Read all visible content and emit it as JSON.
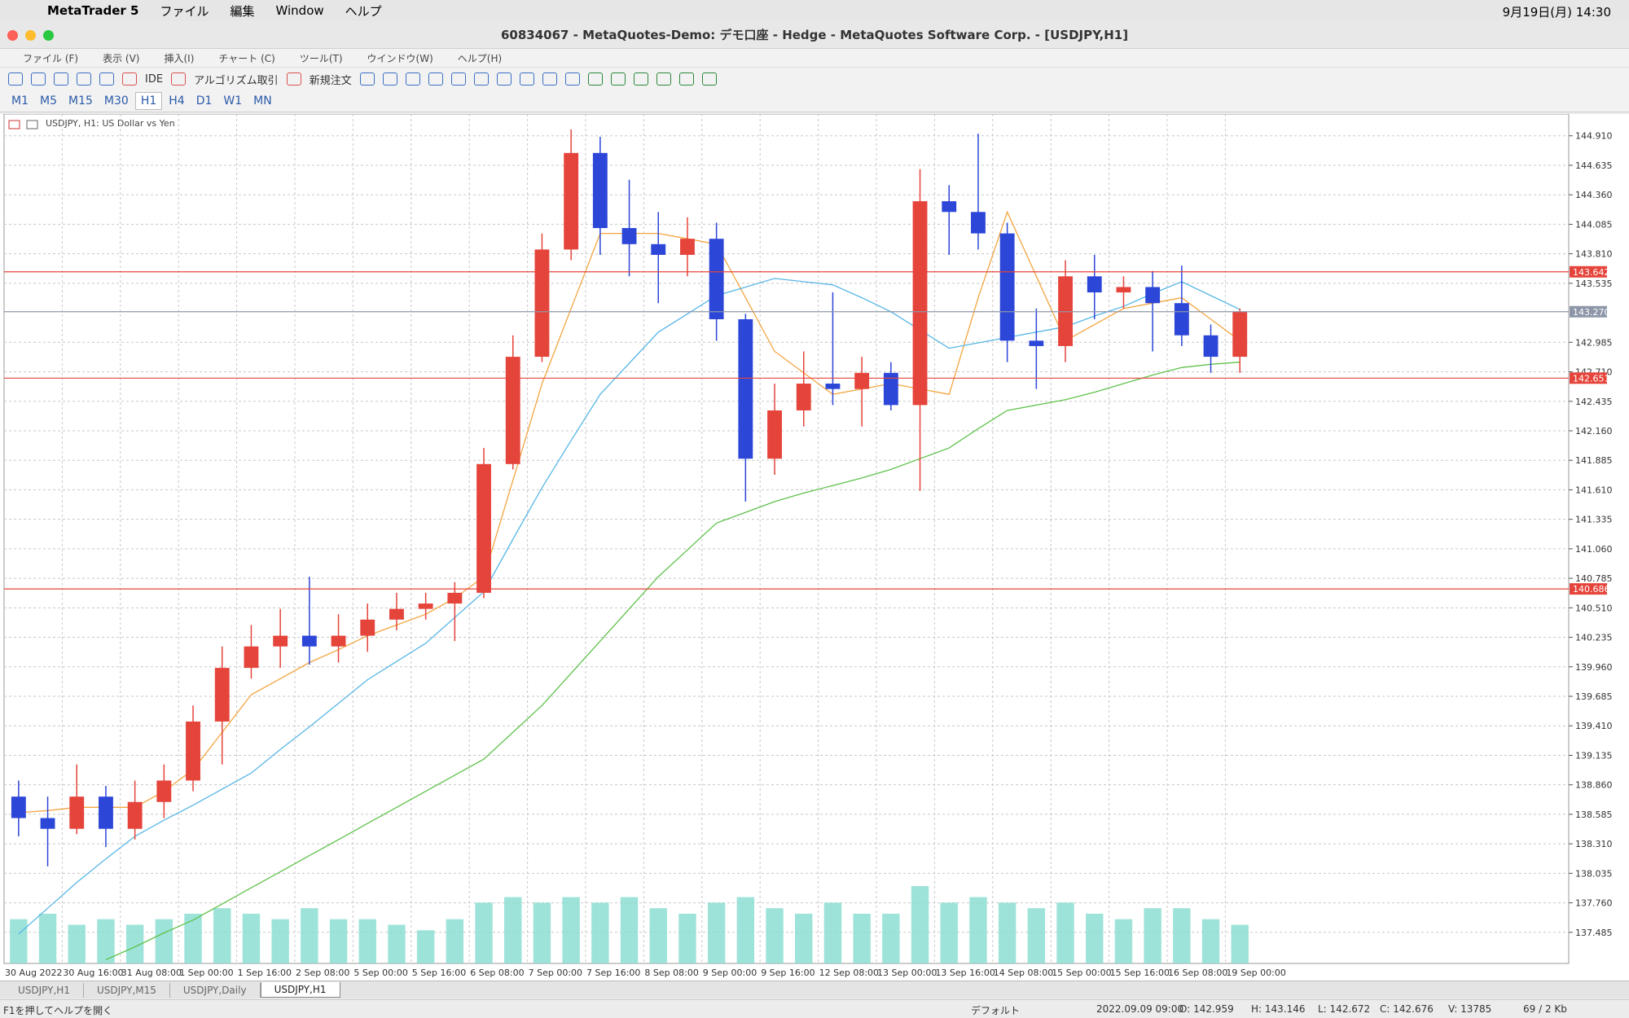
{
  "menubar": {
    "app": "MetaTrader 5",
    "items": [
      "ファイル",
      "編集",
      "Window",
      "ヘルプ"
    ],
    "clock": "9月19日(月)  14:30"
  },
  "window": {
    "title": "60834067 - MetaQuotes-Demo: デモ口座 - Hedge - MetaQuotes Software Corp. - [USDJPY,H1]"
  },
  "menu": [
    "ファイル (F)",
    "表示 (V)",
    "挿入(I)",
    "チャート (C)",
    "ツール(T)",
    "ウインドウ(W)",
    "ヘルプ(H)"
  ],
  "toolbar": {
    "buttons": [
      "IDE",
      "アルゴリズム取引",
      "新規注文"
    ]
  },
  "timeframes": {
    "items": [
      "M1",
      "M5",
      "M15",
      "M30",
      "H1",
      "H4",
      "D1",
      "W1",
      "MN"
    ],
    "active": "H1"
  },
  "chart_data": {
    "type": "candlestick",
    "label": "USDJPY, H1:  US Dollar vs Yen",
    "categories": [
      "30 Aug 2022",
      null,
      "30 Aug 16:00",
      null,
      "31 Aug 08:00",
      null,
      "1 Sep 00:00",
      null,
      "1 Sep 16:00",
      null,
      "2 Sep 08:00",
      null,
      "5 Sep 00:00",
      null,
      "5 Sep 16:00",
      null,
      "6 Sep 08:00",
      null,
      "7 Sep 00:00",
      null,
      "7 Sep 16:00",
      null,
      "8 Sep 08:00",
      null,
      "9 Sep 00:00",
      null,
      "9 Sep 16:00",
      null,
      "12 Sep 08:00",
      null,
      "13 Sep 00:00",
      null,
      "13 Sep 16:00",
      null,
      "14 Sep 08:00",
      null,
      "15 Sep 00:00",
      null,
      "15 Sep 16:00",
      null,
      "16 Sep 08:00",
      null,
      "19 Sep 00:00"
    ],
    "open": [
      138.75,
      138.55,
      138.45,
      138.75,
      138.45,
      138.7,
      138.9,
      139.45,
      139.95,
      140.15,
      140.25,
      140.15,
      140.25,
      140.4,
      140.5,
      140.55,
      140.65,
      141.85,
      142.85,
      143.85,
      144.75,
      144.05,
      143.9,
      143.8,
      143.95,
      143.2,
      141.9,
      142.35,
      142.6,
      142.55,
      142.7,
      142.4,
      144.3,
      144.2,
      144.0,
      143.0,
      142.95,
      143.6,
      143.45,
      143.5,
      143.35,
      143.05,
      142.85
    ],
    "high": [
      138.9,
      138.75,
      139.05,
      138.85,
      138.9,
      139.05,
      139.6,
      140.15,
      140.35,
      140.5,
      140.8,
      140.45,
      140.55,
      140.65,
      140.65,
      140.75,
      142.0,
      143.05,
      144.0,
      144.97,
      144.9,
      144.5,
      144.2,
      144.15,
      144.1,
      143.25,
      142.6,
      142.9,
      143.45,
      142.85,
      142.8,
      144.6,
      144.45,
      144.93,
      144.1,
      143.3,
      143.75,
      143.8,
      143.6,
      143.65,
      143.7,
      143.15,
      143.3
    ],
    "low": [
      138.38,
      138.1,
      138.4,
      138.28,
      138.35,
      138.55,
      138.8,
      139.05,
      139.85,
      139.95,
      139.98,
      140.0,
      140.1,
      140.3,
      140.4,
      140.2,
      140.6,
      141.8,
      142.8,
      143.75,
      143.8,
      143.6,
      143.35,
      143.6,
      143.0,
      141.5,
      141.75,
      142.2,
      142.4,
      142.2,
      142.35,
      141.6,
      143.8,
      143.85,
      142.8,
      142.55,
      142.8,
      143.2,
      143.3,
      142.9,
      142.95,
      142.7,
      142.7
    ],
    "close": [
      138.55,
      138.45,
      138.75,
      138.45,
      138.7,
      138.9,
      139.45,
      139.95,
      140.15,
      140.25,
      140.15,
      140.25,
      140.4,
      140.5,
      140.55,
      140.65,
      141.85,
      142.85,
      143.85,
      144.75,
      144.05,
      143.9,
      143.8,
      143.95,
      143.2,
      141.9,
      142.35,
      142.6,
      142.55,
      142.7,
      142.4,
      144.3,
      144.2,
      144.0,
      143.0,
      142.95,
      143.6,
      143.45,
      143.5,
      143.35,
      143.05,
      142.85,
      143.27
    ],
    "up_color": "#e5443b",
    "down_color": "#2c46d8",
    "overlays": [
      {
        "color": "#f3a541",
        "values": [
          138.6,
          138.62,
          138.65,
          138.65,
          138.65,
          138.8,
          139.0,
          139.35,
          139.7,
          139.85,
          140.0,
          140.12,
          140.25,
          140.35,
          140.45,
          140.6,
          140.8,
          141.7,
          142.6,
          143.3,
          144.0,
          144.0,
          144.0,
          143.95,
          143.9,
          143.4,
          142.9,
          142.7,
          142.5,
          142.55,
          142.6,
          142.55,
          142.5,
          143.4,
          144.2,
          143.6,
          143.0,
          143.15,
          143.3,
          143.35,
          143.4,
          143.2,
          143.0
        ]
      },
      {
        "color": "#57b6e6",
        "values": [
          137.47,
          137.71,
          137.95,
          138.17,
          138.38,
          138.53,
          138.67,
          138.82,
          138.97,
          139.19,
          139.4,
          139.62,
          139.84,
          140.01,
          140.18,
          140.42,
          140.66,
          141.15,
          141.63,
          142.07,
          142.5,
          142.79,
          143.08,
          143.25,
          143.42,
          143.5,
          143.58,
          143.55,
          143.52,
          143.4,
          143.27,
          143.1,
          142.93,
          142.98,
          143.03,
          143.08,
          143.13,
          143.23,
          143.32,
          143.44,
          143.55,
          143.42,
          143.29
        ]
      },
      {
        "color": "#5fc24b",
        "values": [
          null,
          null,
          null,
          137.23,
          137.35,
          137.48,
          137.6,
          137.75,
          137.9,
          138.05,
          138.2,
          138.35,
          138.5,
          138.65,
          138.8,
          138.95,
          139.1,
          139.35,
          139.6,
          139.9,
          140.2,
          140.5,
          140.8,
          141.05,
          141.3,
          141.4,
          141.5,
          141.58,
          141.65,
          141.72,
          141.8,
          141.9,
          142.0,
          142.18,
          142.35,
          142.4,
          142.45,
          142.52,
          142.6,
          142.68,
          142.75,
          142.78,
          142.8
        ]
      }
    ],
    "volume": {
      "color": "#86dccf",
      "values": [
        40,
        45,
        35,
        40,
        35,
        40,
        45,
        50,
        45,
        40,
        50,
        40,
        40,
        35,
        30,
        40,
        55,
        60,
        55,
        60,
        55,
        60,
        50,
        45,
        55,
        60,
        50,
        45,
        55,
        45,
        45,
        70,
        55,
        60,
        55,
        50,
        55,
        45,
        40,
        50,
        50,
        40,
        35
      ]
    },
    "ylim": [
      137.195,
      145.113
    ],
    "yticks": [
      {
        "value": 144.91,
        "label": "144.910"
      },
      144.635,
      {
        "value": 144.36,
        "label": "144.360"
      },
      144.085,
      {
        "value": 143.81,
        "label": "143.810"
      },
      143.535,
      142.985,
      {
        "value": 142.71,
        "label": "142.710"
      },
      142.435,
      {
        "value": 142.16,
        "label": "142.160"
      },
      141.885,
      {
        "value": 141.61,
        "label": "141.610"
      },
      141.335,
      {
        "value": 141.06,
        "label": "141.060"
      },
      140.785,
      {
        "value": 140.51,
        "label": "140.510"
      },
      140.235,
      {
        "value": 139.96,
        "label": "139.960"
      },
      139.685,
      {
        "value": 139.41,
        "label": "139.410"
      },
      139.135,
      {
        "value": 138.86,
        "label": "138.860"
      },
      138.585,
      {
        "value": 138.31,
        "label": "138.310"
      },
      138.035,
      {
        "value": 137.76,
        "label": "137.760"
      },
      137.485
    ],
    "hlines": [
      {
        "value": 143.642,
        "color": "#e5443b"
      },
      {
        "value": 142.651,
        "color": "#e5443b"
      },
      {
        "value": 140.686,
        "color": "#e5443b"
      },
      {
        "value": 143.27,
        "label": "143.270",
        "color": "#8d96a8"
      }
    ],
    "grid": true
  },
  "tabs": {
    "items": [
      "USDJPY,H1",
      "USDJPY,M15",
      "USDJPY,Daily",
      "USDJPY,H1"
    ],
    "active": 3
  },
  "status": {
    "help": "F1を押してヘルプを開く",
    "profile": "デフォルト",
    "fields": [
      "2022.09.09 09:00",
      "O: 142.959",
      "H: 143.146",
      "L: 142.672",
      "C: 142.676",
      "V: 13785"
    ],
    "traffic": "69 / 2 Kb"
  }
}
